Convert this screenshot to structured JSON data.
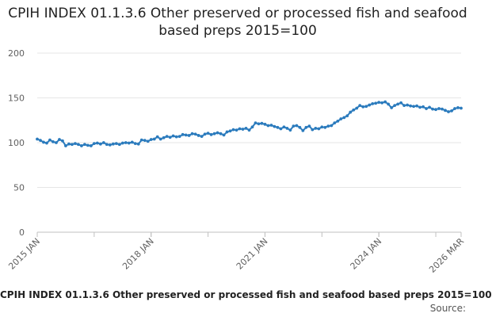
{
  "chart_data": {
    "type": "line",
    "title": "CPIH INDEX 01.1.3.6 Other preserved or processed fish and seafood based preps 2015=100",
    "ylim": [
      0,
      200
    ],
    "yticks": [
      "0",
      "50",
      "100",
      "150",
      "200"
    ],
    "xlim": [
      "2015-01",
      "2026-03"
    ],
    "xticks": [
      {
        "label": "2015 JAN",
        "date": "2015-01"
      },
      {
        "label": "2018 JAN",
        "date": "2018-01"
      },
      {
        "label": "2021 JAN",
        "date": "2021-01"
      },
      {
        "label": "2024 JAN",
        "date": "2024-01"
      },
      {
        "label": "2026 MAR",
        "date": "2026-03"
      }
    ],
    "grid": true,
    "legend_position": "bottom",
    "series": [
      {
        "name": "CPIH INDEX 01.1.3.6 Other preserved or processed fish and seafood based preps 2015=100",
        "color": "#2b7bbd",
        "points": [
          [
            "2015-01",
            104.0
          ],
          [
            "2015-02",
            102.5
          ],
          [
            "2015-03",
            100.5
          ],
          [
            "2015-04",
            99.5
          ],
          [
            "2015-05",
            103.0
          ],
          [
            "2015-06",
            101.0
          ],
          [
            "2015-07",
            100.0
          ],
          [
            "2015-08",
            103.5
          ],
          [
            "2015-09",
            102.0
          ],
          [
            "2015-10",
            96.5
          ],
          [
            "2015-11",
            98.5
          ],
          [
            "2015-12",
            98.0
          ],
          [
            "2016-01",
            99.0
          ],
          [
            "2016-02",
            98.0
          ],
          [
            "2016-03",
            96.5
          ],
          [
            "2016-04",
            98.0
          ],
          [
            "2016-05",
            97.0
          ],
          [
            "2016-06",
            96.5
          ],
          [
            "2016-07",
            99.0
          ],
          [
            "2016-08",
            99.5
          ],
          [
            "2016-09",
            98.5
          ],
          [
            "2016-10",
            100.0
          ],
          [
            "2016-11",
            98.0
          ],
          [
            "2016-12",
            97.5
          ],
          [
            "2017-01",
            98.5
          ],
          [
            "2017-02",
            99.0
          ],
          [
            "2017-03",
            98.0
          ],
          [
            "2017-04",
            99.5
          ],
          [
            "2017-05",
            100.0
          ],
          [
            "2017-06",
            99.5
          ],
          [
            "2017-07",
            100.5
          ],
          [
            "2017-08",
            99.0
          ],
          [
            "2017-09",
            98.5
          ],
          [
            "2017-10",
            103.0
          ],
          [
            "2017-11",
            102.5
          ],
          [
            "2017-12",
            101.5
          ],
          [
            "2018-01",
            103.5
          ],
          [
            "2018-02",
            104.0
          ],
          [
            "2018-03",
            106.5
          ],
          [
            "2018-04",
            104.0
          ],
          [
            "2018-05",
            105.5
          ],
          [
            "2018-06",
            107.0
          ],
          [
            "2018-07",
            106.0
          ],
          [
            "2018-08",
            107.5
          ],
          [
            "2018-09",
            106.5
          ],
          [
            "2018-10",
            107.0
          ],
          [
            "2018-11",
            109.0
          ],
          [
            "2018-12",
            108.5
          ],
          [
            "2019-01",
            108.0
          ],
          [
            "2019-02",
            110.0
          ],
          [
            "2019-03",
            109.5
          ],
          [
            "2019-04",
            108.0
          ],
          [
            "2019-05",
            107.0
          ],
          [
            "2019-06",
            109.5
          ],
          [
            "2019-07",
            110.5
          ],
          [
            "2019-08",
            109.0
          ],
          [
            "2019-09",
            110.0
          ],
          [
            "2019-10",
            111.0
          ],
          [
            "2019-11",
            110.0
          ],
          [
            "2019-12",
            108.5
          ],
          [
            "2020-01",
            112.0
          ],
          [
            "2020-02",
            113.0
          ],
          [
            "2020-03",
            114.5
          ],
          [
            "2020-04",
            114.0
          ],
          [
            "2020-05",
            115.5
          ],
          [
            "2020-06",
            115.0
          ],
          [
            "2020-07",
            116.0
          ],
          [
            "2020-08",
            114.0
          ],
          [
            "2020-09",
            117.5
          ],
          [
            "2020-10",
            122.0
          ],
          [
            "2020-11",
            121.0
          ],
          [
            "2020-12",
            121.5
          ],
          [
            "2021-01",
            120.5
          ],
          [
            "2021-02",
            119.0
          ],
          [
            "2021-03",
            119.5
          ],
          [
            "2021-04",
            118.0
          ],
          [
            "2021-05",
            117.0
          ],
          [
            "2021-06",
            115.5
          ],
          [
            "2021-07",
            117.5
          ],
          [
            "2021-08",
            116.0
          ],
          [
            "2021-09",
            114.0
          ],
          [
            "2021-10",
            118.5
          ],
          [
            "2021-11",
            119.0
          ],
          [
            "2021-12",
            117.0
          ],
          [
            "2022-01",
            113.5
          ],
          [
            "2022-02",
            117.0
          ],
          [
            "2022-03",
            118.5
          ],
          [
            "2022-04",
            114.5
          ],
          [
            "2022-05",
            116.0
          ],
          [
            "2022-06",
            115.5
          ],
          [
            "2022-07",
            117.5
          ],
          [
            "2022-08",
            117.0
          ],
          [
            "2022-09",
            118.5
          ],
          [
            "2022-10",
            119.0
          ],
          [
            "2022-11",
            122.0
          ],
          [
            "2022-12",
            124.0
          ],
          [
            "2023-01",
            126.5
          ],
          [
            "2023-02",
            128.0
          ],
          [
            "2023-03",
            130.0
          ],
          [
            "2023-04",
            134.0
          ],
          [
            "2023-05",
            136.5
          ],
          [
            "2023-06",
            138.5
          ],
          [
            "2023-07",
            141.5
          ],
          [
            "2023-08",
            140.0
          ],
          [
            "2023-09",
            140.5
          ],
          [
            "2023-10",
            142.0
          ],
          [
            "2023-11",
            143.5
          ],
          [
            "2023-12",
            144.0
          ],
          [
            "2024-01",
            145.0
          ],
          [
            "2024-02",
            144.5
          ],
          [
            "2024-03",
            145.5
          ],
          [
            "2024-04",
            143.0
          ],
          [
            "2024-05",
            139.0
          ],
          [
            "2024-06",
            141.5
          ],
          [
            "2024-07",
            143.0
          ],
          [
            "2024-08",
            144.5
          ],
          [
            "2024-09",
            141.5
          ],
          [
            "2024-10",
            142.0
          ],
          [
            "2024-11",
            141.0
          ],
          [
            "2024-12",
            140.5
          ],
          [
            "2025-01",
            141.0
          ],
          [
            "2025-02",
            139.5
          ],
          [
            "2025-03",
            140.0
          ],
          [
            "2025-04",
            138.0
          ],
          [
            "2025-05",
            139.5
          ],
          [
            "2025-06",
            137.5
          ],
          [
            "2025-07",
            137.0
          ],
          [
            "2025-08",
            138.0
          ],
          [
            "2025-09",
            137.5
          ],
          [
            "2025-10",
            136.0
          ],
          [
            "2025-11",
            134.5
          ],
          [
            "2025-12",
            135.5
          ],
          [
            "2026-01",
            138.0
          ],
          [
            "2026-02",
            139.0
          ],
          [
            "2026-03",
            138.5
          ]
        ]
      }
    ],
    "source_label": "Source:"
  }
}
